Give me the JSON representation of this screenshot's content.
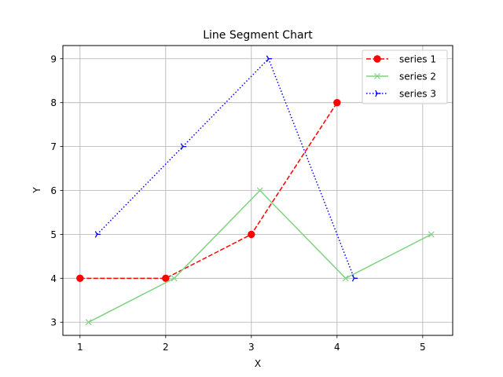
{
  "chart_data": {
    "type": "line",
    "title": "Line Segment Chart",
    "xlabel": "X",
    "ylabel": "Y",
    "xlim": [
      0.8,
      5.35
    ],
    "ylim": [
      2.7,
      9.3
    ],
    "xticks": [
      1,
      2,
      3,
      4,
      5
    ],
    "yticks": [
      3,
      4,
      5,
      6,
      7,
      8,
      9
    ],
    "grid": true,
    "legend_position": "top-right",
    "series": [
      {
        "name": "series 1",
        "x": [
          1,
          2,
          3,
          4
        ],
        "y": [
          4,
          4,
          5,
          8
        ],
        "color": "#ff0000",
        "line_style": "dashed",
        "marker": "circle"
      },
      {
        "name": "series 2",
        "x": [
          1.1,
          2.1,
          3.1,
          4.1,
          5.1
        ],
        "y": [
          3,
          4,
          6,
          4,
          5
        ],
        "color": "#7fd27f",
        "line_style": "solid",
        "marker": "x"
      },
      {
        "name": "series 3",
        "x": [
          1.2,
          2.2,
          3.2,
          4.2
        ],
        "y": [
          5,
          7,
          9,
          4
        ],
        "color": "#0000ff",
        "line_style": "dotted",
        "marker": "tri-right"
      }
    ]
  }
}
